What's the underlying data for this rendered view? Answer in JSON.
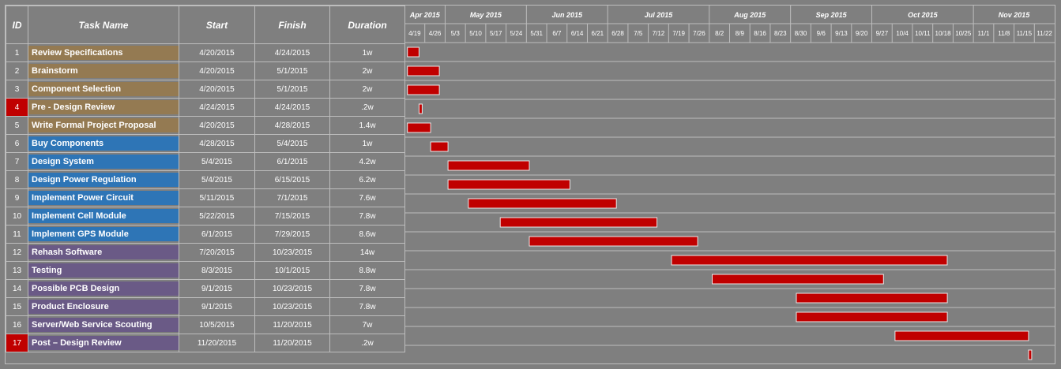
{
  "chart_data": {
    "type": "gantt",
    "columns": {
      "id": "ID",
      "task": "Task Name",
      "start": "Start",
      "finish": "Finish",
      "duration": "Duration"
    },
    "months": [
      {
        "label": "Apr 2015",
        "start": "2015-04-19"
      },
      {
        "label": "May 2015",
        "start": "2015-05-03"
      },
      {
        "label": "Jun 2015",
        "start": "2015-05-31"
      },
      {
        "label": "Jul 2015",
        "start": "2015-06-28"
      },
      {
        "label": "Aug 2015",
        "start": "2015-08-02"
      },
      {
        "label": "Sep 2015",
        "start": "2015-08-30"
      },
      {
        "label": "Oct 2015",
        "start": "2015-09-27"
      },
      {
        "label": "Nov 2015",
        "start": "2015-11-01"
      }
    ],
    "axis_end": "2015-11-29",
    "weeks": [
      "4/19",
      "4/26",
      "5/3",
      "5/10",
      "5/17",
      "5/24",
      "5/31",
      "6/7",
      "6/14",
      "6/21",
      "6/28",
      "7/5",
      "7/12",
      "7/19",
      "7/26",
      "8/2",
      "8/9",
      "8/16",
      "8/23",
      "8/30",
      "9/6",
      "9/13",
      "9/20",
      "9/27",
      "10/4",
      "10/11",
      "10/18",
      "10/25",
      "11/1",
      "11/8",
      "11/15",
      "11/22"
    ],
    "bar_color": "#c00000",
    "phase_colors": {
      "planning": "#947a52",
      "design": "#2e75b6",
      "software": "#6a5a86",
      "milestone": "#c00000"
    },
    "tasks": [
      {
        "id": "1",
        "name": "Review Specifications",
        "start": "4/20/2015",
        "finish": "4/24/2015",
        "duration": "1w",
        "phase": "planning",
        "milestone": false
      },
      {
        "id": "2",
        "name": "Brainstorm",
        "start": "4/20/2015",
        "finish": "5/1/2015",
        "duration": "2w",
        "phase": "planning",
        "milestone": false
      },
      {
        "id": "3",
        "name": "Component Selection",
        "start": "4/20/2015",
        "finish": "5/1/2015",
        "duration": "2w",
        "phase": "planning",
        "milestone": false
      },
      {
        "id": "4",
        "name": "Pre - Design Review",
        "start": "4/24/2015",
        "finish": "4/24/2015",
        "duration": ".2w",
        "phase": "planning",
        "milestone": true
      },
      {
        "id": "5",
        "name": "Write Formal Project Proposal",
        "start": "4/20/2015",
        "finish": "4/28/2015",
        "duration": "1.4w",
        "phase": "planning",
        "milestone": false
      },
      {
        "id": "6",
        "name": "Buy Components",
        "start": "4/28/2015",
        "finish": "5/4/2015",
        "duration": "1w",
        "phase": "design",
        "milestone": false
      },
      {
        "id": "7",
        "name": "Design System",
        "start": "5/4/2015",
        "finish": "6/1/2015",
        "duration": "4.2w",
        "phase": "design",
        "milestone": false
      },
      {
        "id": "8",
        "name": "Design Power Regulation",
        "start": "5/4/2015",
        "finish": "6/15/2015",
        "duration": "6.2w",
        "phase": "design",
        "milestone": false
      },
      {
        "id": "9",
        "name": "Implement Power Circuit",
        "start": "5/11/2015",
        "finish": "7/1/2015",
        "duration": "7.6w",
        "phase": "design",
        "milestone": false
      },
      {
        "id": "10",
        "name": "Implement Cell Module",
        "start": "5/22/2015",
        "finish": "7/15/2015",
        "duration": "7.8w",
        "phase": "design",
        "milestone": false
      },
      {
        "id": "11",
        "name": "Implement GPS Module",
        "start": "6/1/2015",
        "finish": "7/29/2015",
        "duration": "8.6w",
        "phase": "design",
        "milestone": false
      },
      {
        "id": "12",
        "name": "Rehash Software",
        "start": "7/20/2015",
        "finish": "10/23/2015",
        "duration": "14w",
        "phase": "software",
        "milestone": false
      },
      {
        "id": "13",
        "name": "Testing",
        "start": "8/3/2015",
        "finish": "10/1/2015",
        "duration": "8.8w",
        "phase": "software",
        "milestone": false
      },
      {
        "id": "14",
        "name": "Possible PCB Design",
        "start": "9/1/2015",
        "finish": "10/23/2015",
        "duration": "7.8w",
        "phase": "software",
        "milestone": false
      },
      {
        "id": "15",
        "name": "Product Enclosure",
        "start": "9/1/2015",
        "finish": "10/23/2015",
        "duration": "7.8w",
        "phase": "software",
        "milestone": false
      },
      {
        "id": "16",
        "name": "Server/Web Service Scouting",
        "start": "10/5/2015",
        "finish": "11/20/2015",
        "duration": "7w",
        "phase": "software",
        "milestone": false
      },
      {
        "id": "17",
        "name": "Post – Design Review",
        "start": "11/20/2015",
        "finish": "11/20/2015",
        "duration": ".2w",
        "phase": "software",
        "milestone": true
      }
    ]
  }
}
